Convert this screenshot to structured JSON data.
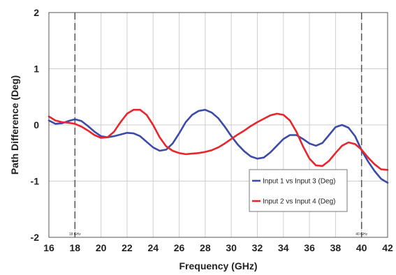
{
  "chart_data": {
    "type": "line",
    "xlabel": "Frequency (GHz)",
    "ylabel": "Path Difference (Deg)",
    "xlim": [
      16,
      42
    ],
    "ylim": [
      -2,
      2
    ],
    "x_ticks": [
      16,
      18,
      20,
      22,
      24,
      26,
      28,
      30,
      32,
      34,
      36,
      38,
      40,
      42
    ],
    "y_ticks": [
      -2,
      -1,
      0,
      1,
      2
    ],
    "grid": true,
    "legend_position": "bottom-right",
    "markers": [
      {
        "x": 18,
        "label": "18 GHz"
      },
      {
        "x": 40,
        "label": "40 GHz"
      }
    ],
    "series": [
      {
        "name": "Input 1 vs Input 3 (Deg)",
        "color": "#3b4ba8",
        "x": [
          16,
          16.5,
          17,
          17.5,
          18,
          18.5,
          19,
          19.5,
          20,
          20.5,
          21,
          21.5,
          22,
          22.5,
          23,
          23.5,
          24,
          24.5,
          25,
          25.5,
          26,
          26.5,
          27,
          27.5,
          28,
          28.5,
          29,
          29.5,
          30,
          30.5,
          31,
          31.5,
          32,
          32.5,
          33,
          33.5,
          34,
          34.5,
          35,
          35.5,
          36,
          36.5,
          37,
          37.5,
          38,
          38.5,
          39,
          39.5,
          40,
          40.5,
          41,
          41.5,
          42
        ],
        "values": [
          0.08,
          0.02,
          0.03,
          0.07,
          0.1,
          0.07,
          -0.02,
          -0.12,
          -0.2,
          -0.22,
          -0.2,
          -0.17,
          -0.14,
          -0.15,
          -0.2,
          -0.3,
          -0.4,
          -0.46,
          -0.44,
          -0.33,
          -0.15,
          0.05,
          0.18,
          0.25,
          0.27,
          0.22,
          0.12,
          -0.03,
          -0.2,
          -0.35,
          -0.47,
          -0.56,
          -0.6,
          -0.58,
          -0.49,
          -0.37,
          -0.25,
          -0.18,
          -0.18,
          -0.25,
          -0.33,
          -0.37,
          -0.32,
          -0.18,
          -0.04,
          0.0,
          -0.05,
          -0.2,
          -0.45,
          -0.65,
          -0.82,
          -0.96,
          -1.03
        ]
      },
      {
        "name": "Input 2 vs Input 4 (Deg)",
        "color": "#e8262b",
        "x": [
          16,
          16.5,
          17,
          17.5,
          18,
          18.5,
          19,
          19.5,
          20,
          20.5,
          21,
          21.5,
          22,
          22.5,
          23,
          23.5,
          24,
          24.5,
          25,
          25.5,
          26,
          26.5,
          27,
          27.5,
          28,
          28.5,
          29,
          29.5,
          30,
          30.5,
          31,
          31.5,
          32,
          32.5,
          33,
          33.5,
          34,
          34.5,
          35,
          35.5,
          36,
          36.5,
          37,
          37.5,
          38,
          38.5,
          39,
          39.5,
          40,
          40.5,
          41,
          41.5,
          42
        ],
        "values": [
          0.15,
          0.08,
          0.05,
          0.04,
          0.02,
          -0.03,
          -0.1,
          -0.18,
          -0.23,
          -0.22,
          -0.12,
          0.05,
          0.2,
          0.27,
          0.27,
          0.18,
          0.0,
          -0.22,
          -0.38,
          -0.46,
          -0.5,
          -0.52,
          -0.51,
          -0.5,
          -0.48,
          -0.45,
          -0.4,
          -0.33,
          -0.25,
          -0.17,
          -0.1,
          -0.02,
          0.05,
          0.11,
          0.17,
          0.2,
          0.18,
          0.08,
          -0.12,
          -0.38,
          -0.6,
          -0.72,
          -0.73,
          -0.64,
          -0.5,
          -0.37,
          -0.31,
          -0.34,
          -0.44,
          -0.58,
          -0.7,
          -0.79,
          -0.8
        ]
      }
    ]
  }
}
